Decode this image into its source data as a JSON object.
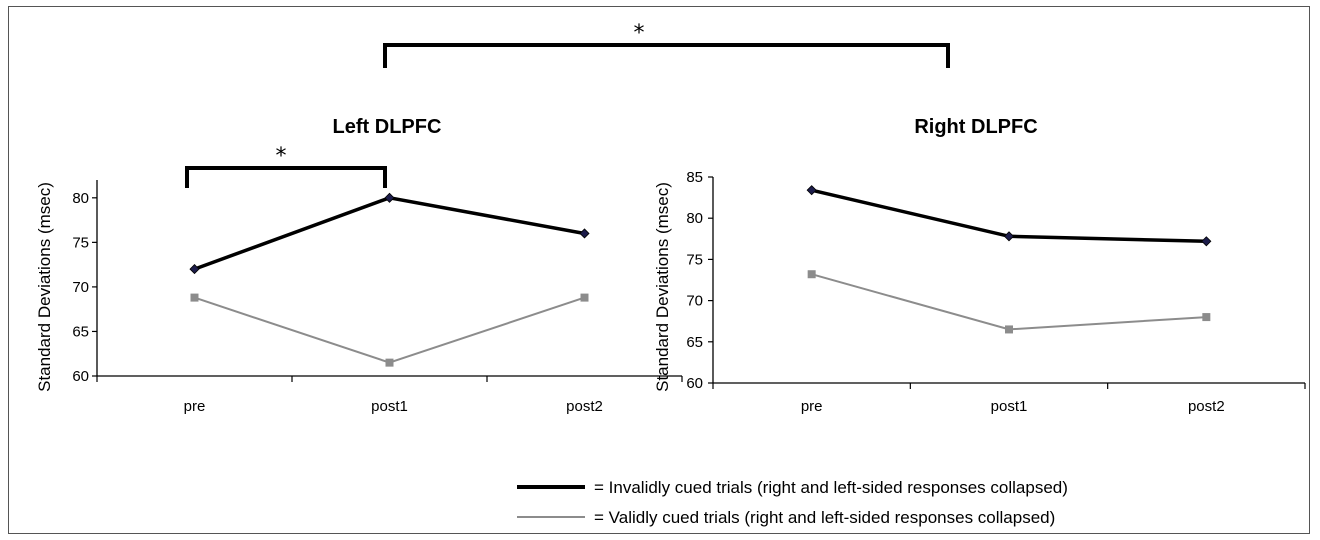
{
  "chart_data": [
    {
      "type": "line",
      "title": "Left DLPFC",
      "ylabel": "Standard Deviations (msec)",
      "xlabel": "",
      "categories": [
        "pre",
        "post1",
        "post2"
      ],
      "ylim": [
        60,
        82
      ],
      "yticks": [
        "60",
        "65",
        "70",
        "75",
        "80"
      ],
      "series": [
        {
          "key": "invalid",
          "values": [
            72,
            80,
            76
          ],
          "color": "#000000",
          "marker": "diamond"
        },
        {
          "key": "valid",
          "values": [
            68.8,
            61.5,
            68.8
          ],
          "color": "#8c8c8c",
          "marker": "square"
        }
      ],
      "significance": {
        "from": "pre",
        "to": "post1",
        "label": "*"
      }
    },
    {
      "type": "line",
      "title": "Right DLPFC",
      "ylabel": "Standard Deviations (msec)",
      "xlabel": "",
      "categories": [
        "pre",
        "post1",
        "post2"
      ],
      "ylim": [
        60,
        85
      ],
      "yticks": [
        "60",
        "65",
        "70",
        "75",
        "80",
        "85"
      ],
      "series": [
        {
          "key": "invalid",
          "values": [
            83.4,
            77.8,
            77.2
          ],
          "color": "#000000",
          "marker": "diamond"
        },
        {
          "key": "valid",
          "values": [
            73.2,
            66.5,
            68
          ],
          "color": "#8c8c8c",
          "marker": "square"
        }
      ]
    }
  ],
  "top_significance": {
    "label": "*"
  },
  "legend": {
    "items": [
      {
        "key": "invalid",
        "prefix": "= ",
        "text": "Invalidly cued trials (right and left-sided responses collapsed)",
        "color": "#000000"
      },
      {
        "key": "valid",
        "prefix": "= ",
        "text": "Validly cued trials (right and left-sided responses collapsed)",
        "color": "#8c8c8c"
      }
    ]
  }
}
